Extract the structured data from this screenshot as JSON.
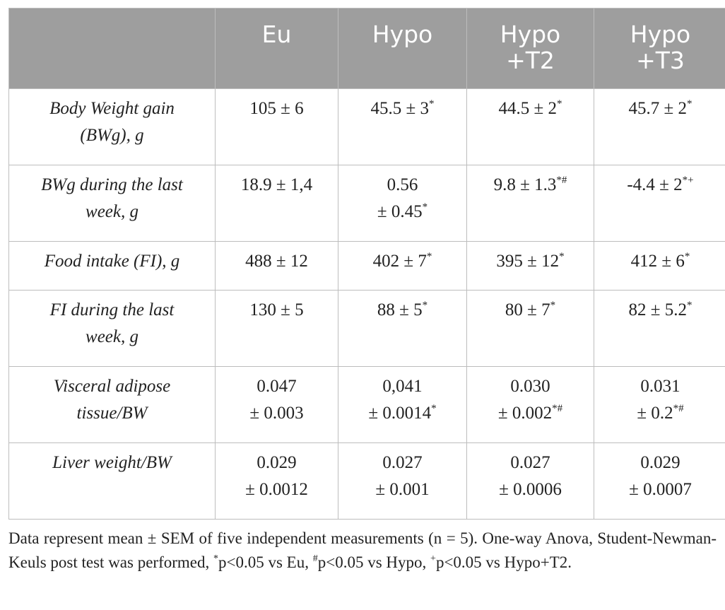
{
  "table": {
    "headers": [
      [
        "",
        ""
      ],
      [
        "Eu",
        ""
      ],
      [
        "Hypo",
        ""
      ],
      [
        "Hypo",
        "+T2"
      ],
      [
        "Hypo",
        "+T3"
      ]
    ],
    "rows": [
      {
        "label": [
          "Body Weight gain",
          "(BWg), g"
        ],
        "cells": [
          [
            {
              "t": "105 ± 6",
              "s": ""
            }
          ],
          [
            {
              "t": "45.5 ± 3",
              "s": "*"
            }
          ],
          [
            {
              "t": "44.5 ± 2",
              "s": "*"
            }
          ],
          [
            {
              "t": "45.7 ± 2",
              "s": "*"
            }
          ]
        ]
      },
      {
        "label": [
          "BWg during the last",
          "week, g"
        ],
        "cells": [
          [
            {
              "t": "18.9 ± 1,4",
              "s": ""
            }
          ],
          [
            {
              "t": "0.56",
              "s": ""
            },
            {
              "t": "± 0.45",
              "s": "*"
            }
          ],
          [
            {
              "t": "9.8 ± 1.3",
              "s": "*#"
            }
          ],
          [
            {
              "t": "-4.4 ± 2",
              "s": "*+"
            }
          ]
        ]
      },
      {
        "label": [
          "Food intake (FI), g"
        ],
        "cells": [
          [
            {
              "t": "488 ± 12",
              "s": ""
            }
          ],
          [
            {
              "t": "402 ± 7",
              "s": "*"
            }
          ],
          [
            {
              "t": "395 ± 12",
              "s": "*"
            }
          ],
          [
            {
              "t": "412 ± 6",
              "s": "*"
            }
          ]
        ]
      },
      {
        "label": [
          "FI during the last",
          "week, g"
        ],
        "cells": [
          [
            {
              "t": "130 ± 5",
              "s": ""
            }
          ],
          [
            {
              "t": "88 ± 5",
              "s": "*"
            }
          ],
          [
            {
              "t": "80 ± 7",
              "s": "*"
            }
          ],
          [
            {
              "t": "82 ± 5.2",
              "s": "*"
            }
          ]
        ]
      },
      {
        "label": [
          "Visceral adipose",
          "tissue/BW"
        ],
        "cells": [
          [
            {
              "t": "0.047",
              "s": ""
            },
            {
              "t": "± 0.003",
              "s": ""
            }
          ],
          [
            {
              "t": "0,041",
              "s": ""
            },
            {
              "t": "± 0.0014",
              "s": "*"
            }
          ],
          [
            {
              "t": "0.030",
              "s": ""
            },
            {
              "t": "± 0.002",
              "s": "*#"
            }
          ],
          [
            {
              "t": "0.031",
              "s": ""
            },
            {
              "t": "± 0.2",
              "s": "*#"
            }
          ]
        ]
      },
      {
        "label": [
          "Liver weight/BW"
        ],
        "cells": [
          [
            {
              "t": "0.029",
              "s": ""
            },
            {
              "t": "± 0.0012",
              "s": ""
            }
          ],
          [
            {
              "t": "0.027",
              "s": ""
            },
            {
              "t": "± 0.001",
              "s": ""
            }
          ],
          [
            {
              "t": "0.027",
              "s": ""
            },
            {
              "t": "± 0.0006",
              "s": ""
            }
          ],
          [
            {
              "t": "0.029",
              "s": ""
            },
            {
              "t": "± 0.0007",
              "s": ""
            }
          ]
        ]
      }
    ]
  },
  "footnote": {
    "main": "Data represent mean ± SEM of five independent measurements (n = 5). One-way Anova, Student-Newman-Keuls post test was performed, ",
    "sym1": "*",
    "text1": "p<0.05 vs Eu, ",
    "sym2": "#",
    "text2": "p<0.05 vs Hypo, ",
    "sym3": "+",
    "text3": "p<0.05 vs Hypo+T2."
  }
}
